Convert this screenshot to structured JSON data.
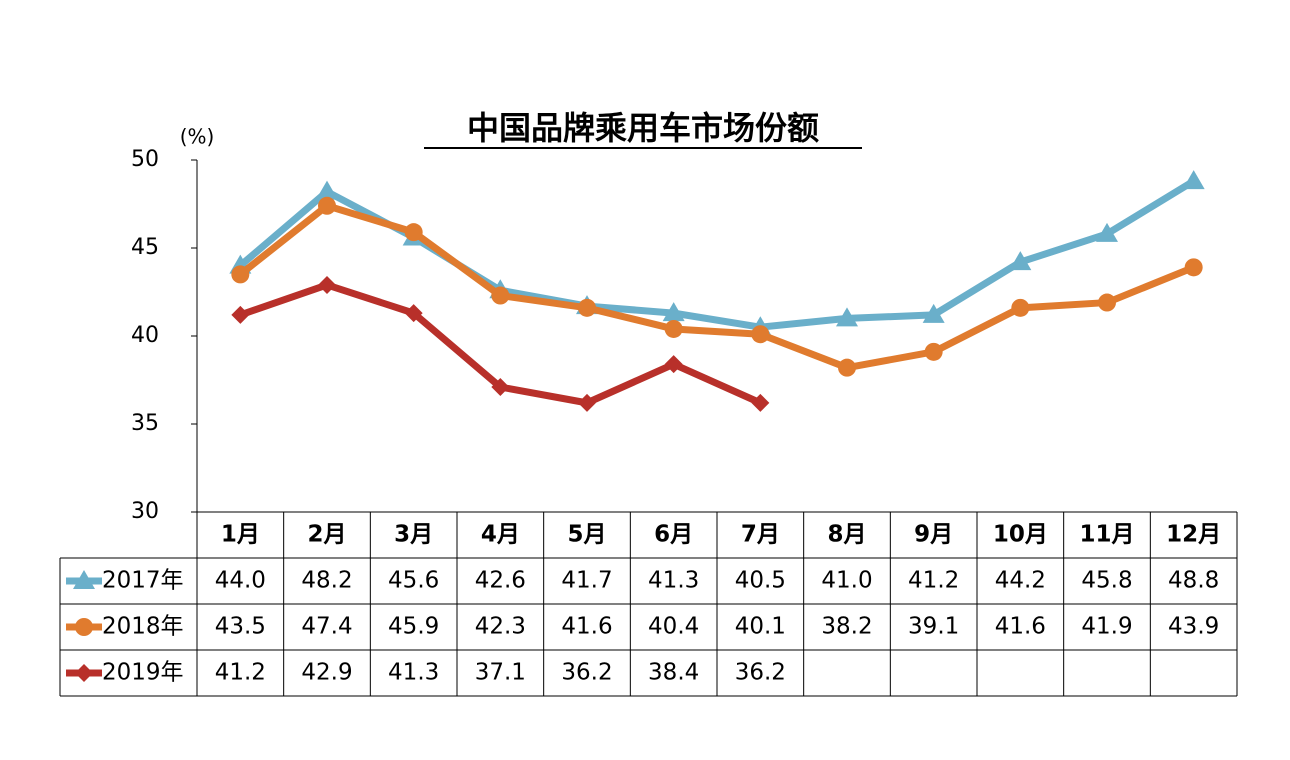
{
  "chart_data": {
    "type": "line",
    "title": "中国品牌乘用车市场份额",
    "y_unit": "(%)",
    "categories": [
      "1月",
      "2月",
      "3月",
      "4月",
      "5月",
      "6月",
      "7月",
      "8月",
      "9月",
      "10月",
      "11月",
      "12月"
    ],
    "series": [
      {
        "name": "2017年",
        "color": "#6aafca",
        "marker": "triangle",
        "values": [
          44.0,
          48.2,
          45.6,
          42.6,
          41.7,
          41.3,
          40.5,
          41.0,
          41.2,
          44.2,
          45.8,
          48.8
        ],
        "value_labels": [
          "44.0",
          "48.2",
          "45.6",
          "42.6",
          "41.7",
          "41.3",
          "40.5",
          "41.0",
          "41.2",
          "44.2",
          "45.8",
          "48.8"
        ]
      },
      {
        "name": "2018年",
        "color": "#e07b2e",
        "marker": "circle",
        "values": [
          43.5,
          47.4,
          45.9,
          42.3,
          41.6,
          40.4,
          40.1,
          38.2,
          39.1,
          41.6,
          41.9,
          43.9
        ],
        "value_labels": [
          "43.5",
          "47.4",
          "45.9",
          "42.3",
          "41.6",
          "40.4",
          "40.1",
          "38.2",
          "39.1",
          "41.6",
          "41.9",
          "43.9"
        ]
      },
      {
        "name": "2019年",
        "color": "#b8302a",
        "marker": "diamond",
        "values": [
          41.2,
          42.9,
          41.3,
          37.1,
          36.2,
          38.4,
          36.2,
          null,
          null,
          null,
          null,
          null
        ],
        "value_labels": [
          "41.2",
          "42.9",
          "41.3",
          "37.1",
          "36.2",
          "38.4",
          "36.2",
          null,
          null,
          null,
          null,
          null
        ]
      }
    ],
    "ylim": [
      30,
      50
    ],
    "yticks": [
      30,
      35,
      40,
      45,
      50
    ],
    "grid": false
  }
}
